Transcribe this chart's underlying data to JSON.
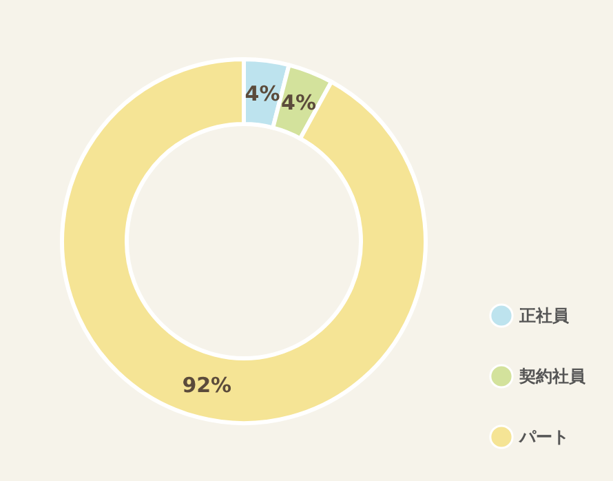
{
  "chart_data": {
    "type": "donut",
    "categories": [
      "正社員",
      "契約社員",
      "パート"
    ],
    "values": [
      4,
      4,
      92
    ],
    "colors": [
      "#bde3ee",
      "#d3e29c",
      "#f5e495"
    ],
    "value_labels": [
      "4%",
      "4%",
      "92%"
    ],
    "legend": "bottom right"
  }
}
